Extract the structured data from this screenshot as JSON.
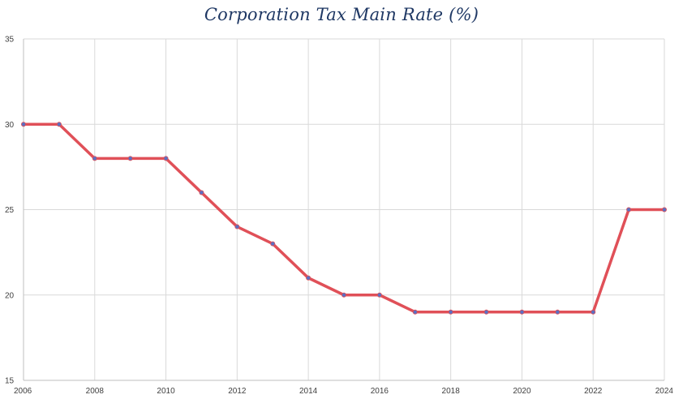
{
  "chart_data": {
    "type": "line",
    "title": "Corporation Tax Main Rate (%)",
    "xlabel": "",
    "ylabel": "",
    "xlim": [
      2006,
      2024
    ],
    "ylim": [
      15,
      35
    ],
    "x_ticks": [
      2006,
      2008,
      2010,
      2012,
      2014,
      2016,
      2018,
      2020,
      2022,
      2024
    ],
    "y_ticks": [
      15,
      20,
      25,
      30,
      35
    ],
    "grid": true,
    "legend": "none",
    "series": [
      {
        "color": "#e05058",
        "marker_color": "#5b6fc2",
        "x": [
          2006,
          2007,
          2008,
          2009,
          2010,
          2011,
          2012,
          2013,
          2014,
          2015,
          2016,
          2017,
          2018,
          2019,
          2020,
          2021,
          2022,
          2023,
          2024
        ],
        "y": [
          30,
          30,
          28,
          28,
          28,
          26,
          24,
          23,
          21,
          20,
          20,
          19,
          19,
          19,
          19,
          19,
          19,
          25,
          25
        ]
      }
    ]
  }
}
